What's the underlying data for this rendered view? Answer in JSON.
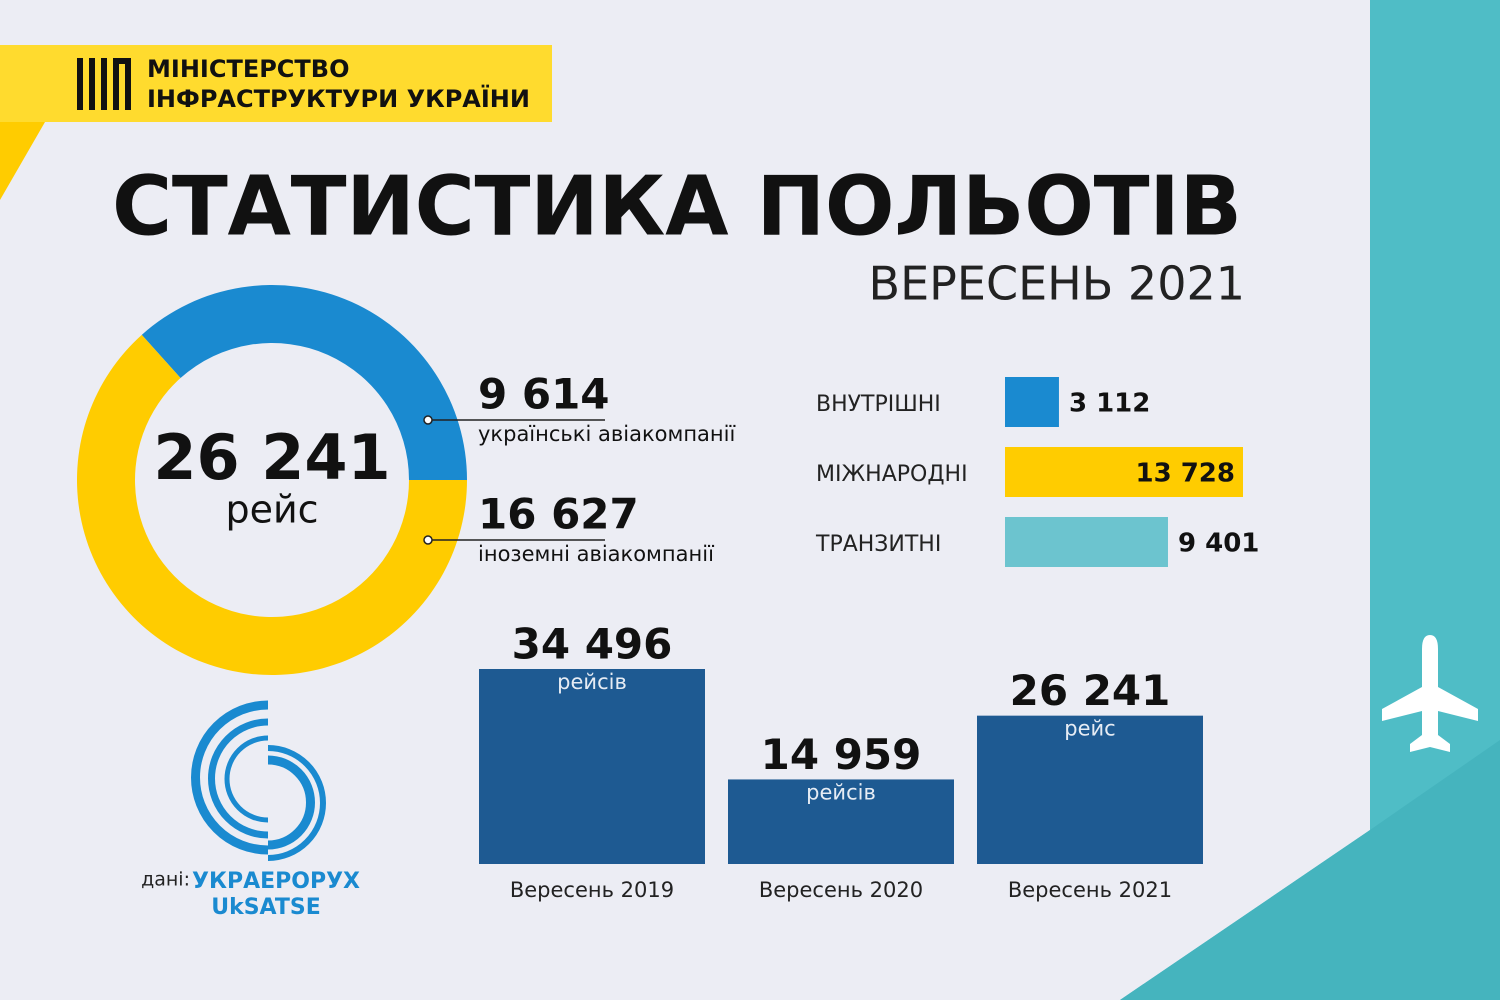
{
  "header": {
    "ministry": [
      "МІНІСТЕРСТВО",
      "ІНФРАСТРУКТУРИ УКРАЇНИ"
    ],
    "title": "СТАТИСТИКА ПОЛЬОТІВ",
    "subtitle": "ВЕРЕСЕНЬ 2021"
  },
  "chart_data": [
    {
      "type": "donut",
      "total_label": "26 241",
      "total_unit": "рейс",
      "categories": [
        "українські авіакомпанії",
        "іноземні авіакомпанії"
      ],
      "values": [
        9614,
        16627
      ],
      "value_labels": [
        "9 614",
        "16 627"
      ],
      "colors": [
        "#1a8ad0",
        "#ffcc00"
      ]
    },
    {
      "type": "hbar",
      "categories": [
        "ВНУТРІШНІ",
        "МІЖНАРОДНІ",
        "ТРАНЗИТНІ"
      ],
      "values": [
        3112,
        13728,
        9401
      ],
      "value_labels": [
        "3 112",
        "13 728",
        "9 401"
      ],
      "colors": [
        "#1a8ad0",
        "#ffcc00",
        "#6cc4cf"
      ]
    },
    {
      "type": "vbar",
      "categories": [
        "Вересень 2019",
        "Вересень 2020",
        "Вересень 2021"
      ],
      "values": [
        34496,
        14959,
        26241
      ],
      "value_labels": [
        "34 496",
        "14 959",
        "26 241"
      ],
      "units": [
        "рейсів",
        "рейсів",
        "рейс"
      ],
      "color": "#1e5a92"
    }
  ],
  "footer": {
    "source_prefix": "дані:",
    "source_name": "УКРАЕРОРУХ",
    "source_code": "UkSATSE"
  }
}
